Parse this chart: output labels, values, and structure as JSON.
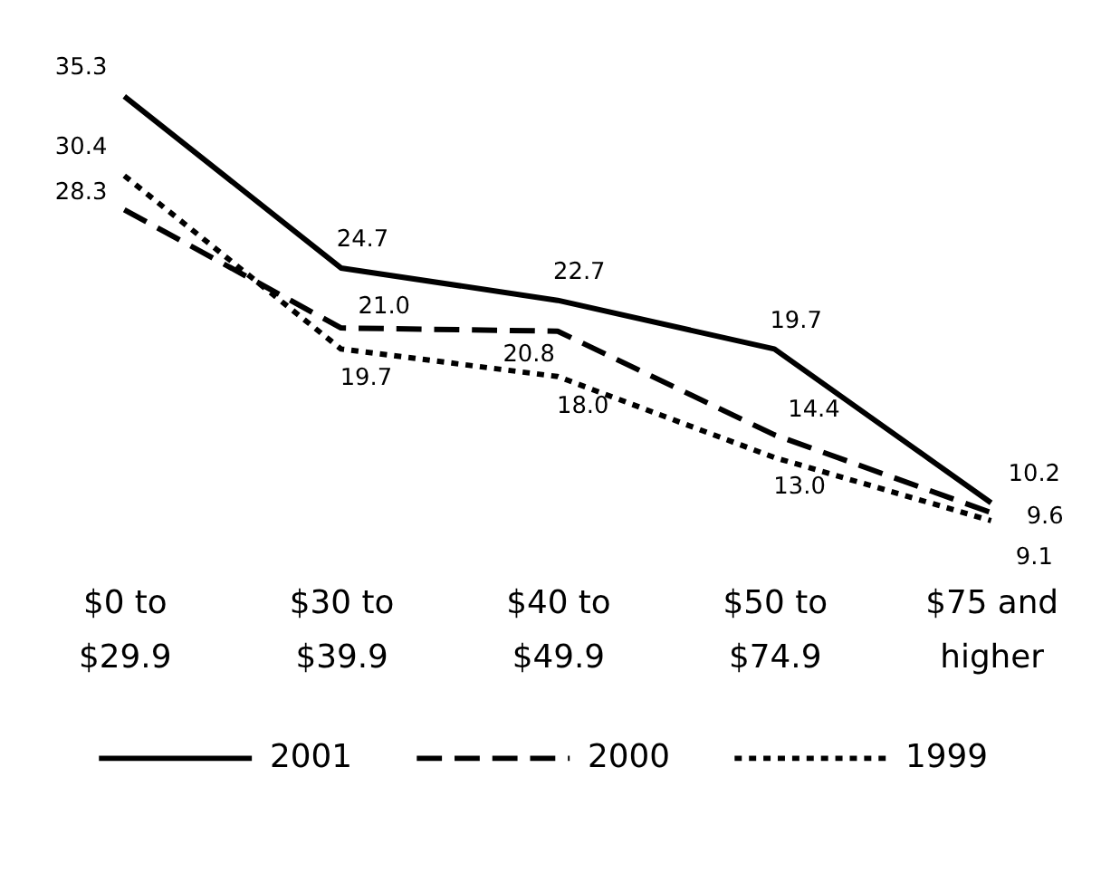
{
  "chart_data": {
    "type": "line",
    "categories": [
      "$0 to\n$29.9",
      "$30 to\n$39.9",
      "$40 to\n$49.9",
      "$50 to\n$74.9",
      "$75 and\nhigher"
    ],
    "series": [
      {
        "name": "2001",
        "color": "#000000",
        "line_style": "solid",
        "values": [
          35.3,
          24.7,
          22.7,
          19.7,
          10.2
        ],
        "value_labels": [
          "35.3",
          "24.7",
          "22.7",
          "19.7",
          "10.2"
        ]
      },
      {
        "name": "2000",
        "color": "#000000",
        "line_style": "dashed",
        "values": [
          28.3,
          21.0,
          20.8,
          14.4,
          9.6
        ],
        "value_labels": [
          "28.3",
          "21.0",
          "20.8",
          "14.4",
          "9.6"
        ]
      },
      {
        "name": "1999",
        "color": "#000000",
        "line_style": "dotted",
        "values": [
          30.4,
          19.7,
          18.0,
          13.0,
          9.1
        ],
        "value_labels": [
          "30.4",
          "19.7",
          "18.0",
          "13.0",
          "9.1"
        ]
      }
    ],
    "tick_labels": "x",
    "grid": false,
    "legend": "bottom",
    "marker": "none"
  }
}
